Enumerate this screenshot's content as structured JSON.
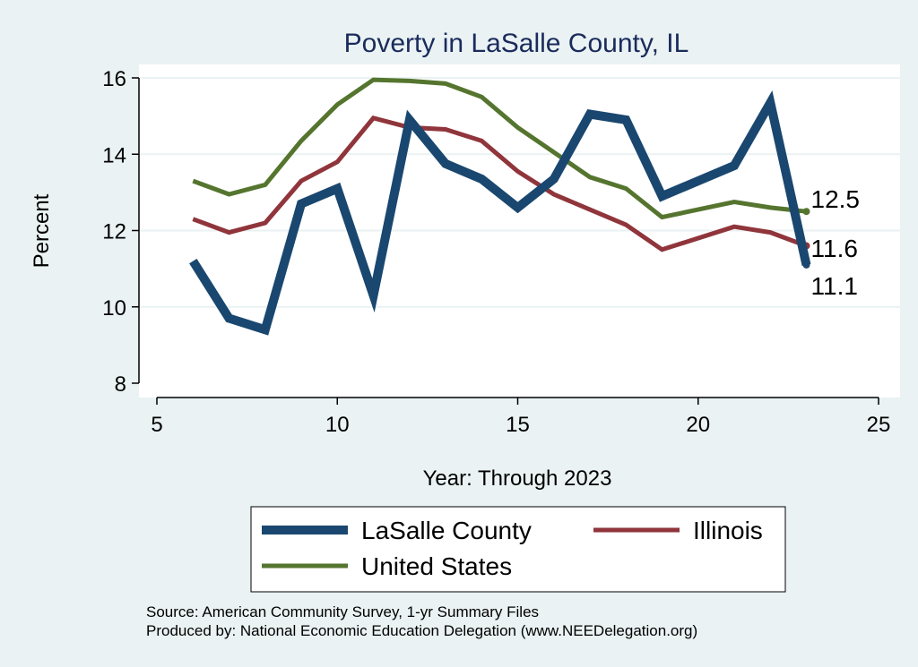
{
  "chart_data": {
    "type": "line",
    "title": "Poverty in LaSalle County, IL",
    "xlabel": "Year: Through 2023",
    "ylabel": "Percent",
    "xlim": [
      5,
      25
    ],
    "ylim": [
      8,
      16
    ],
    "x_ticks": [
      "5",
      "10",
      "15",
      "20",
      "25"
    ],
    "y_ticks": [
      "8",
      "10",
      "12",
      "14",
      "16"
    ],
    "grid": "horizontal",
    "legend_placement": "bottom",
    "series": [
      {
        "name": "LaSalle County",
        "color": "#1a476f",
        "points": [
          [
            6,
            11.2
          ],
          [
            7,
            9.7
          ],
          [
            8,
            9.4
          ],
          [
            9,
            12.7
          ],
          [
            10,
            13.1
          ],
          [
            11,
            10.3
          ],
          [
            12,
            14.9
          ],
          [
            13,
            13.75
          ],
          [
            14,
            13.35
          ],
          [
            15,
            12.6
          ],
          [
            16,
            13.35
          ],
          [
            17,
            15.05
          ],
          [
            18,
            14.9
          ],
          [
            19,
            12.9
          ],
          [
            21,
            13.7
          ],
          [
            22,
            15.35
          ],
          [
            23,
            11.1
          ]
        ],
        "end_label": "11.1"
      },
      {
        "name": "Illinois",
        "color": "#90353b",
        "points": [
          [
            6,
            12.3
          ],
          [
            7,
            11.95
          ],
          [
            8,
            12.2
          ],
          [
            9,
            13.3
          ],
          [
            10,
            13.8
          ],
          [
            11,
            14.95
          ],
          [
            12,
            14.7
          ],
          [
            13,
            14.65
          ],
          [
            14,
            14.35
          ],
          [
            15,
            13.55
          ],
          [
            16,
            12.95
          ],
          [
            17,
            12.55
          ],
          [
            18,
            12.15
          ],
          [
            19,
            11.5
          ],
          [
            21,
            12.1
          ],
          [
            22,
            11.95
          ],
          [
            23,
            11.6
          ]
        ],
        "end_label": "11.6"
      },
      {
        "name": "United States",
        "color": "#55752f",
        "points": [
          [
            6,
            13.3
          ],
          [
            7,
            12.95
          ],
          [
            8,
            13.2
          ],
          [
            9,
            14.35
          ],
          [
            10,
            15.3
          ],
          [
            11,
            15.95
          ],
          [
            12,
            15.92
          ],
          [
            13,
            15.85
          ],
          [
            14,
            15.5
          ],
          [
            15,
            14.7
          ],
          [
            16,
            14.05
          ],
          [
            17,
            13.4
          ],
          [
            18,
            13.1
          ],
          [
            19,
            12.35
          ],
          [
            21,
            12.75
          ],
          [
            22,
            12.6
          ],
          [
            23,
            12.5
          ]
        ],
        "end_label": "12.5"
      }
    ]
  },
  "notes": {
    "source": "Source: American Community Survey, 1-yr Summary Files",
    "produced_by": "Produced by: National Economic Education Delegation (www.NEEDelegation.org)"
  }
}
